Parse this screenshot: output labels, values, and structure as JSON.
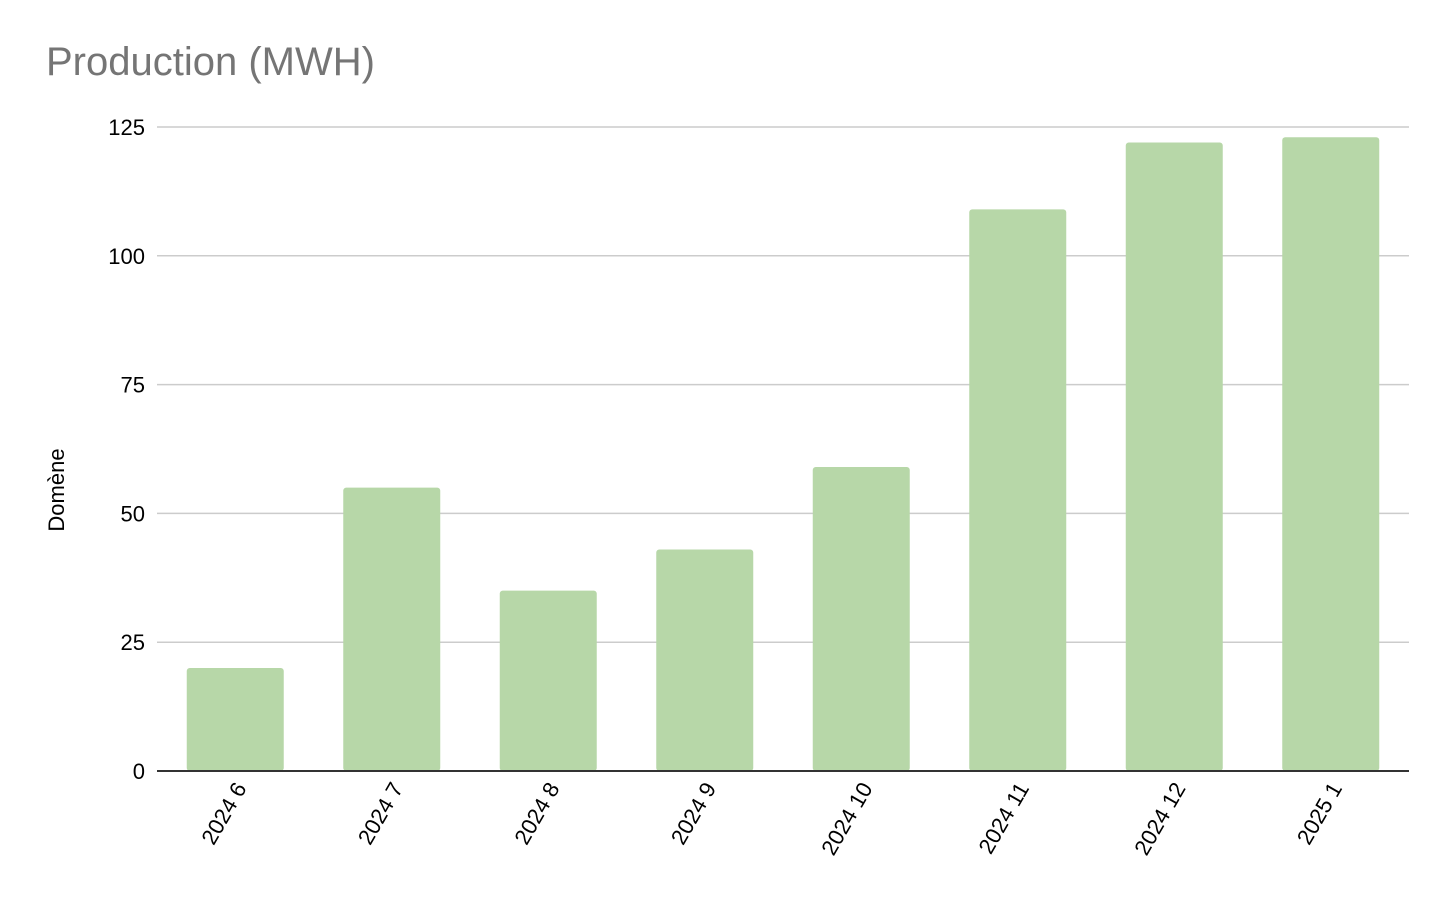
{
  "chart_data": {
    "type": "bar",
    "title": "Production (MWH)",
    "xlabel": "",
    "ylabel": "Domène",
    "categories": [
      "2024 6",
      "2024 7",
      "2024 8",
      "2024 9",
      "2024 10",
      "2024 11",
      "2024 12",
      "2025 1"
    ],
    "values": [
      20,
      55,
      35,
      43,
      59,
      109,
      122,
      123
    ],
    "ylim": [
      0,
      125
    ],
    "yticks": [
      "0",
      "25",
      "50",
      "75",
      "100",
      "125"
    ],
    "grid": true,
    "legend": "none",
    "colors": {
      "bar": "#b7d7a8",
      "grid": "#cccccc",
      "baseline": "#333333",
      "title": "#757575"
    }
  }
}
